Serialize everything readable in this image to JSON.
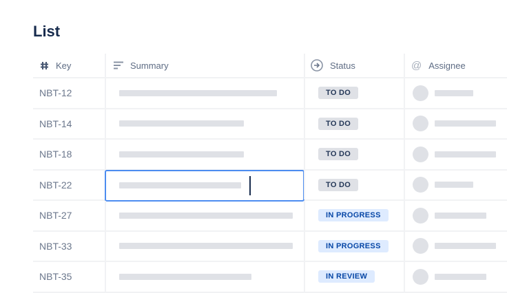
{
  "title": "List",
  "columns": {
    "key": "Key",
    "summary": "Summary",
    "status": "Status",
    "assignee": "Assignee"
  },
  "icons": {
    "key": "hash-icon",
    "summary": "lines-icon",
    "status": "arrow-circle-icon",
    "assignee": "at-icon"
  },
  "colors": {
    "focus": "#4c8cf0",
    "todo_bg": "#dfe1e6",
    "blue_bg": "#deebff",
    "blue_text": "#0747a6"
  },
  "rows": [
    {
      "key": "NBT-12",
      "status": "TO DO"
    },
    {
      "key": "NBT-14",
      "status": "TO DO"
    },
    {
      "key": "NBT-18",
      "status": "TO DO"
    },
    {
      "key": "NBT-22",
      "status": "TO DO"
    },
    {
      "key": "NBT-27",
      "status": "IN PROGRESS"
    },
    {
      "key": "NBT-33",
      "status": "IN PROGRESS"
    },
    {
      "key": "NBT-35",
      "status": "IN REVIEW"
    }
  ]
}
